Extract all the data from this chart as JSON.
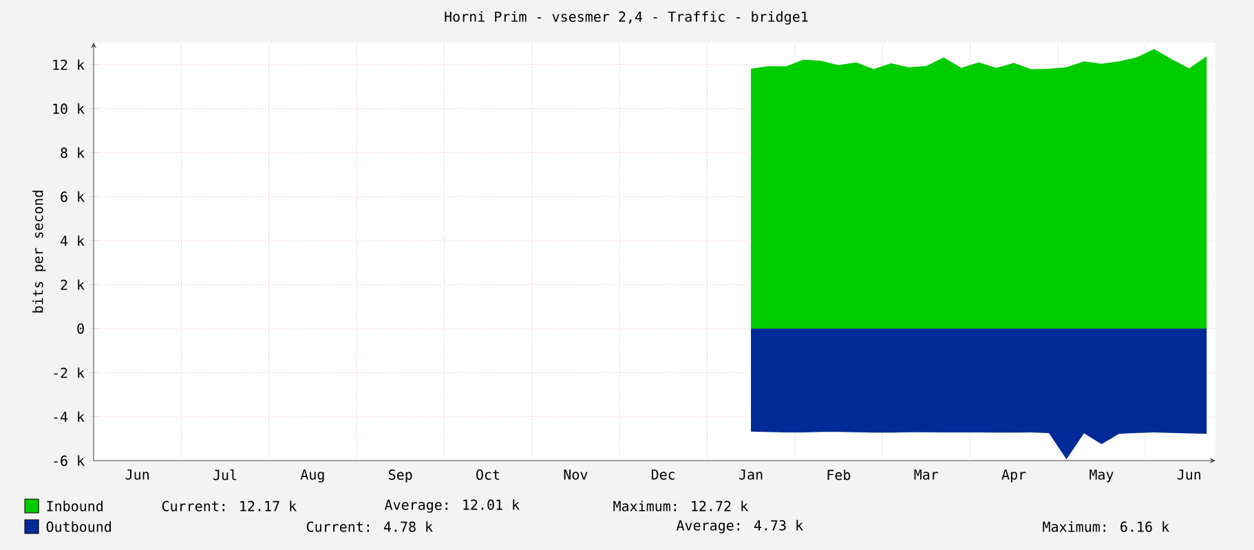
{
  "chart_data": {
    "type": "area",
    "title": "Horni Prim - vsesmer 2,4 - Traffic - bridge1",
    "ylabel": "bits per second",
    "categories": [
      null,
      null,
      "Jun",
      null,
      null,
      null,
      null,
      "Jul",
      null,
      null,
      null,
      null,
      "Aug",
      null,
      null,
      null,
      null,
      "Sep",
      null,
      null,
      null,
      null,
      "Oct",
      null,
      null,
      null,
      null,
      "Nov",
      null,
      null,
      null,
      null,
      "Dec",
      null,
      null,
      null,
      null,
      "Jan",
      null,
      null,
      null,
      null,
      "Feb",
      null,
      null,
      null,
      null,
      "Mar",
      null,
      null,
      null,
      null,
      "Apr",
      null,
      null,
      null,
      null,
      "May",
      null,
      null,
      null,
      null,
      "Jun",
      null
    ],
    "ylim": [
      -6000,
      13000
    ],
    "yticks": [
      {
        "value": -6000,
        "label": "-6 k"
      },
      {
        "value": -4000,
        "label": "-4 k"
      },
      {
        "value": -2000,
        "label": "-2 k"
      },
      {
        "value": 0,
        "label": "0"
      },
      {
        "value": 2000,
        "label": "2 k"
      },
      {
        "value": 4000,
        "label": "4 k"
      },
      {
        "value": 6000,
        "label": "6 k"
      },
      {
        "value": 8000,
        "label": "8 k"
      },
      {
        "value": 10000,
        "label": "10 k"
      },
      {
        "value": 12000,
        "label": "12 k"
      }
    ],
    "grid": true,
    "legend": "bottom",
    "series": [
      {
        "name": "Inbound",
        "color": "#00cc00",
        "values": [
          null,
          null,
          null,
          null,
          null,
          null,
          null,
          null,
          null,
          null,
          null,
          null,
          null,
          null,
          null,
          null,
          null,
          null,
          null,
          null,
          null,
          null,
          null,
          null,
          null,
          null,
          null,
          null,
          null,
          null,
          null,
          null,
          null,
          null,
          null,
          null,
          null,
          11810,
          11930,
          11920,
          12230,
          12170,
          11980,
          12100,
          11800,
          12060,
          11880,
          11940,
          12330,
          11850,
          12100,
          11850,
          12080,
          11790,
          11810,
          11880,
          12150,
          12040,
          12150,
          12330,
          12710,
          12250,
          11830,
          12380
        ]
      },
      {
        "name": "Outbound",
        "color": "#002a97",
        "values": [
          null,
          null,
          null,
          null,
          null,
          null,
          null,
          null,
          null,
          null,
          null,
          null,
          null,
          null,
          null,
          null,
          null,
          null,
          null,
          null,
          null,
          null,
          null,
          null,
          null,
          null,
          null,
          null,
          null,
          null,
          null,
          null,
          null,
          null,
          null,
          null,
          null,
          -4680,
          -4700,
          -4720,
          -4720,
          -4700,
          -4700,
          -4710,
          -4730,
          -4730,
          -4710,
          -4710,
          -4720,
          -4720,
          -4720,
          -4730,
          -4730,
          -4720,
          -4750,
          -5940,
          -4760,
          -5250,
          -4780,
          -4740,
          -4720,
          -4740,
          -4760,
          -4780
        ]
      }
    ],
    "annotations": [
      "Current: 12.17 k",
      "Average: 12.01 k",
      "Maximum: 12.72 k",
      "Current: 4.78 k",
      "Average: 4.73 k",
      "Maximum: 6.16 k"
    ]
  }
}
